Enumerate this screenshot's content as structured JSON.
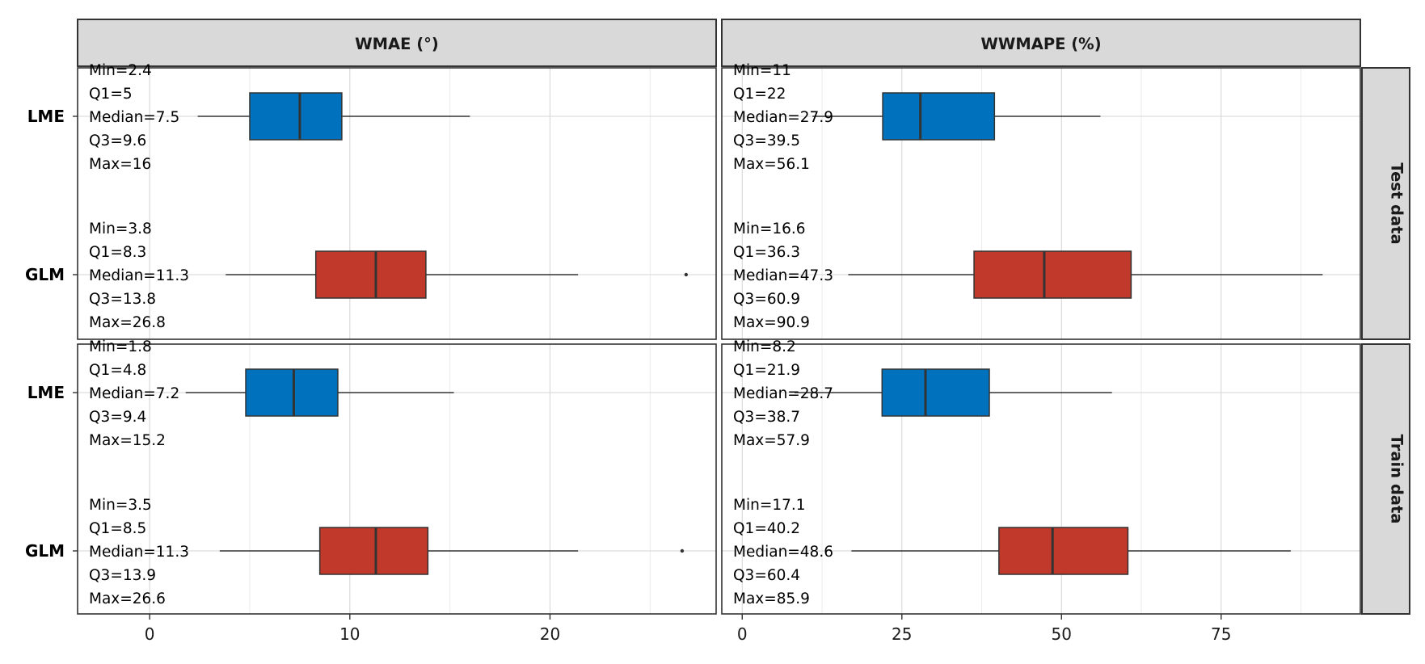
{
  "chart_data": {
    "type": "boxplot",
    "title": "",
    "xlabel": "",
    "ylabel": "",
    "grid": true,
    "legend": "none",
    "columns": [
      {
        "label": "WMAE (°)",
        "xlim": [
          -3.6,
          28.3
        ],
        "ticks": [
          0,
          10,
          20
        ],
        "tick_labels": [
          "0",
          "10",
          "20"
        ],
        "minor_ticks": [
          5,
          15,
          25
        ]
      },
      {
        "label": "WWMAPE (%)",
        "xlim": [
          -3.2,
          96.8
        ],
        "ticks": [
          0,
          25,
          50,
          75
        ],
        "tick_labels": [
          "0",
          "25",
          "50",
          "75"
        ],
        "minor_ticks": [
          12.5,
          37.5,
          62.5,
          87.5
        ]
      }
    ],
    "rows": [
      {
        "label": "Test data"
      },
      {
        "label": "Train data"
      }
    ],
    "categories": [
      "LME",
      "GLM"
    ],
    "colors": {
      "LME": "#0072BD",
      "GLM": "#C0392B"
    },
    "panels": [
      {
        "row": 0,
        "col": 0,
        "boxes": [
          {
            "category": "LME",
            "min": 2.4,
            "q1": 5,
            "median": 7.5,
            "q3": 9.6,
            "max": 16,
            "outliers": [],
            "labels": [
              "Min=2.4",
              "Q1=5",
              "Median=7.5",
              "Q3=9.6",
              "Max=16"
            ]
          },
          {
            "category": "GLM",
            "min": 3.8,
            "q1": 8.3,
            "median": 11.3,
            "q3": 13.8,
            "whisker_high": 21.4,
            "max": 26.8,
            "outliers": [
              26.8
            ],
            "labels": [
              "Min=3.8",
              "Q1=8.3",
              "Median=11.3",
              "Q3=13.8",
              "Max=26.8"
            ]
          }
        ]
      },
      {
        "row": 0,
        "col": 1,
        "boxes": [
          {
            "category": "LME",
            "min": 11,
            "q1": 22,
            "median": 27.9,
            "q3": 39.5,
            "max": 56.1,
            "outliers": [],
            "labels": [
              "Min=11",
              "Q1=22",
              "Median=27.9",
              "Q3=39.5",
              "Max=56.1"
            ]
          },
          {
            "category": "GLM",
            "min": 16.6,
            "q1": 36.3,
            "median": 47.3,
            "q3": 60.9,
            "max": 90.9,
            "outliers": [],
            "labels": [
              "Min=16.6",
              "Q1=36.3",
              "Median=47.3",
              "Q3=60.9",
              "Max=90.9"
            ]
          }
        ]
      },
      {
        "row": 1,
        "col": 0,
        "boxes": [
          {
            "category": "LME",
            "min": 1.8,
            "q1": 4.8,
            "median": 7.2,
            "q3": 9.4,
            "max": 15.2,
            "outliers": [],
            "labels": [
              "Min=1.8",
              "Q1=4.8",
              "Median=7.2",
              "Q3=9.4",
              "Max=15.2"
            ]
          },
          {
            "category": "GLM",
            "min": 3.5,
            "q1": 8.5,
            "median": 11.3,
            "q3": 13.9,
            "whisker_high": 21.4,
            "max": 26.6,
            "outliers": [
              26.6
            ],
            "labels": [
              "Min=3.5",
              "Q1=8.5",
              "Median=11.3",
              "Q3=13.9",
              "Max=26.6"
            ]
          }
        ]
      },
      {
        "row": 1,
        "col": 1,
        "boxes": [
          {
            "category": "LME",
            "min": 8.2,
            "q1": 21.9,
            "median": 28.7,
            "q3": 38.7,
            "max": 57.9,
            "outliers": [],
            "labels": [
              "Min=8.2",
              "Q1=21.9",
              "Median=28.7",
              "Q3=38.7",
              "Max=57.9"
            ]
          },
          {
            "category": "GLM",
            "min": 17.1,
            "q1": 40.2,
            "median": 48.6,
            "q3": 60.4,
            "max": 85.9,
            "outliers": [],
            "labels": [
              "Min=17.1",
              "Q1=40.2",
              "Median=48.6",
              "Q3=60.4",
              "Max=85.9"
            ]
          }
        ]
      }
    ]
  }
}
